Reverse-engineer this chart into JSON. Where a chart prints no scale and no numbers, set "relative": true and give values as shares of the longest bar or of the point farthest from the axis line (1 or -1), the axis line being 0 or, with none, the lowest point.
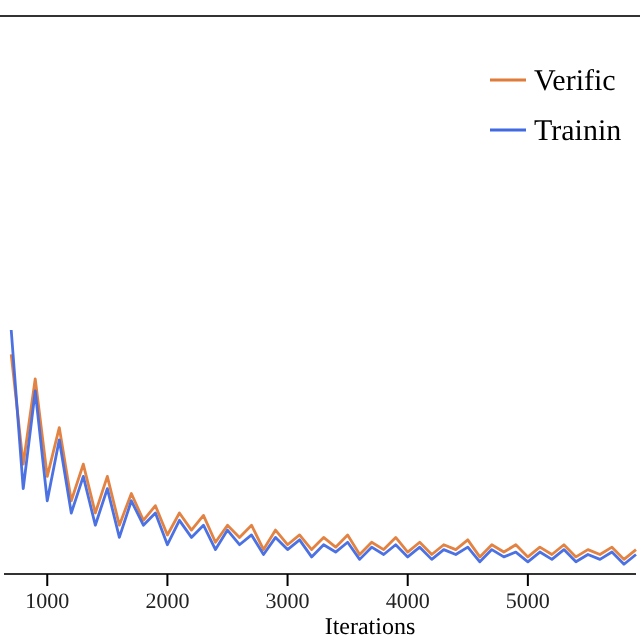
{
  "chart_data": {
    "type": "line",
    "xlabel": "Iterations",
    "relative": true,
    "legend": "top right",
    "xlim": [
      640,
      5900
    ],
    "xticks": [
      1000,
      2000,
      3000,
      4000,
      5000
    ],
    "x": [
      700,
      800,
      900,
      1000,
      1100,
      1200,
      1300,
      1400,
      1500,
      1600,
      1700,
      1800,
      1900,
      2000,
      2100,
      2200,
      2300,
      2400,
      2500,
      2600,
      2700,
      2800,
      2900,
      3000,
      3100,
      3200,
      3300,
      3400,
      3500,
      3600,
      3700,
      3800,
      3900,
      4000,
      4100,
      4200,
      4300,
      4400,
      4500,
      4600,
      4700,
      4800,
      4900,
      5000,
      5100,
      5200,
      5300,
      5400,
      5500,
      5600,
      5700,
      5800,
      5900
    ],
    "series": [
      {
        "name": "Verific",
        "color": "#e07b39",
        "values": [
          0.9,
          0.45,
          0.8,
          0.4,
          0.6,
          0.3,
          0.45,
          0.25,
          0.4,
          0.2,
          0.33,
          0.22,
          0.28,
          0.16,
          0.25,
          0.18,
          0.24,
          0.13,
          0.2,
          0.15,
          0.2,
          0.1,
          0.18,
          0.12,
          0.16,
          0.1,
          0.15,
          0.11,
          0.16,
          0.08,
          0.13,
          0.1,
          0.15,
          0.09,
          0.13,
          0.08,
          0.12,
          0.1,
          0.14,
          0.07,
          0.12,
          0.09,
          0.12,
          0.07,
          0.11,
          0.08,
          0.12,
          0.07,
          0.1,
          0.08,
          0.11,
          0.06,
          0.1
        ]
      },
      {
        "name": "Trainin",
        "color": "#4169e1",
        "values": [
          1.0,
          0.35,
          0.75,
          0.3,
          0.55,
          0.25,
          0.4,
          0.2,
          0.35,
          0.15,
          0.3,
          0.2,
          0.25,
          0.12,
          0.22,
          0.15,
          0.2,
          0.1,
          0.18,
          0.12,
          0.16,
          0.08,
          0.15,
          0.1,
          0.14,
          0.07,
          0.12,
          0.09,
          0.13,
          0.06,
          0.11,
          0.08,
          0.12,
          0.07,
          0.11,
          0.06,
          0.1,
          0.08,
          0.11,
          0.05,
          0.1,
          0.07,
          0.09,
          0.05,
          0.09,
          0.06,
          0.1,
          0.05,
          0.08,
          0.06,
          0.09,
          0.04,
          0.08
        ]
      }
    ]
  }
}
